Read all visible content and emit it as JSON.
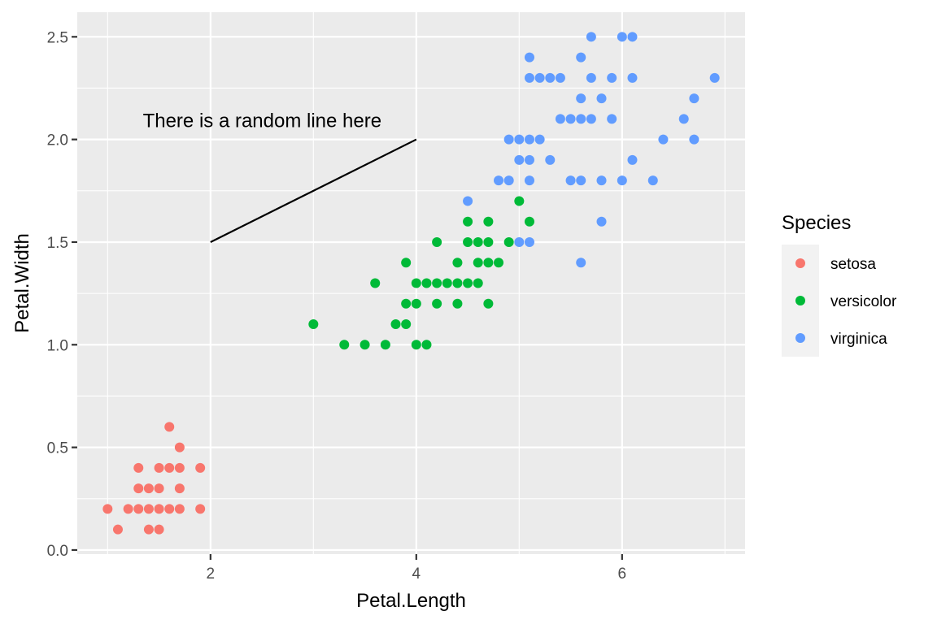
{
  "chart_data": {
    "type": "scatter",
    "xlabel": "Petal.Length",
    "ylabel": "Petal.Width",
    "xlim": [
      0.705,
      7.195
    ],
    "ylim": [
      -0.02,
      2.62
    ],
    "x_major_ticks": [
      2,
      4,
      6
    ],
    "x_minor_ticks": [
      1,
      3,
      5,
      7
    ],
    "y_major_ticks": [
      0.0,
      0.5,
      1.0,
      1.5,
      2.0,
      2.5
    ],
    "y_minor_ticks": [
      0.25,
      0.75,
      1.25,
      1.75,
      2.25
    ],
    "x_tick_labels": [
      "2",
      "4",
      "6"
    ],
    "y_tick_labels": [
      "0.0",
      "0.5",
      "1.0",
      "1.5",
      "2.0",
      "2.5"
    ],
    "grid": true,
    "legend": {
      "title": "Species",
      "position": "right",
      "entries": [
        "setosa",
        "versicolor",
        "virginica"
      ]
    },
    "annotation": {
      "text": "There is a random line here",
      "segment": {
        "x1": 2,
        "y1": 1.5,
        "x2": 4,
        "y2": 2.0
      }
    },
    "series": [
      {
        "name": "setosa",
        "color": "#F8766D",
        "points": [
          [
            1.0,
            0.2
          ],
          [
            1.1,
            0.1
          ],
          [
            1.2,
            0.2
          ],
          [
            1.3,
            0.2
          ],
          [
            1.3,
            0.3
          ],
          [
            1.3,
            0.4
          ],
          [
            1.4,
            0.1
          ],
          [
            1.4,
            0.2
          ],
          [
            1.4,
            0.3
          ],
          [
            1.5,
            0.1
          ],
          [
            1.5,
            0.2
          ],
          [
            1.5,
            0.3
          ],
          [
            1.5,
            0.4
          ],
          [
            1.6,
            0.2
          ],
          [
            1.6,
            0.4
          ],
          [
            1.6,
            0.6
          ],
          [
            1.7,
            0.2
          ],
          [
            1.7,
            0.3
          ],
          [
            1.7,
            0.4
          ],
          [
            1.7,
            0.5
          ],
          [
            1.9,
            0.2
          ],
          [
            1.9,
            0.4
          ]
        ]
      },
      {
        "name": "versicolor",
        "color": "#00BA38",
        "points": [
          [
            3.0,
            1.1
          ],
          [
            3.3,
            1.0
          ],
          [
            3.5,
            1.0
          ],
          [
            3.6,
            1.3
          ],
          [
            3.7,
            1.0
          ],
          [
            3.8,
            1.1
          ],
          [
            3.9,
            1.1
          ],
          [
            3.9,
            1.2
          ],
          [
            3.9,
            1.4
          ],
          [
            4.0,
            1.0
          ],
          [
            4.0,
            1.2
          ],
          [
            4.0,
            1.3
          ],
          [
            4.1,
            1.0
          ],
          [
            4.1,
            1.3
          ],
          [
            4.2,
            1.2
          ],
          [
            4.2,
            1.3
          ],
          [
            4.2,
            1.5
          ],
          [
            4.3,
            1.3
          ],
          [
            4.4,
            1.2
          ],
          [
            4.4,
            1.3
          ],
          [
            4.4,
            1.4
          ],
          [
            4.5,
            1.3
          ],
          [
            4.5,
            1.5
          ],
          [
            4.5,
            1.6
          ],
          [
            4.6,
            1.3
          ],
          [
            4.6,
            1.4
          ],
          [
            4.6,
            1.5
          ],
          [
            4.7,
            1.2
          ],
          [
            4.7,
            1.4
          ],
          [
            4.7,
            1.5
          ],
          [
            4.7,
            1.6
          ],
          [
            4.8,
            1.4
          ],
          [
            4.9,
            1.5
          ],
          [
            5.0,
            1.7
          ],
          [
            5.1,
            1.6
          ]
        ]
      },
      {
        "name": "virginica",
        "color": "#619CFF",
        "points": [
          [
            4.5,
            1.7
          ],
          [
            4.8,
            1.8
          ],
          [
            4.9,
            1.8
          ],
          [
            4.9,
            2.0
          ],
          [
            5.0,
            1.5
          ],
          [
            5.0,
            1.9
          ],
          [
            5.0,
            2.0
          ],
          [
            5.1,
            1.5
          ],
          [
            5.1,
            1.8
          ],
          [
            5.1,
            1.9
          ],
          [
            5.1,
            2.0
          ],
          [
            5.1,
            2.3
          ],
          [
            5.1,
            2.4
          ],
          [
            5.2,
            2.0
          ],
          [
            5.2,
            2.3
          ],
          [
            5.3,
            1.9
          ],
          [
            5.3,
            2.3
          ],
          [
            5.4,
            2.1
          ],
          [
            5.4,
            2.3
          ],
          [
            5.5,
            1.8
          ],
          [
            5.5,
            2.1
          ],
          [
            5.6,
            1.4
          ],
          [
            5.6,
            1.8
          ],
          [
            5.6,
            2.1
          ],
          [
            5.6,
            2.2
          ],
          [
            5.6,
            2.4
          ],
          [
            5.7,
            2.1
          ],
          [
            5.7,
            2.3
          ],
          [
            5.7,
            2.5
          ],
          [
            5.8,
            1.6
          ],
          [
            5.8,
            1.8
          ],
          [
            5.8,
            2.2
          ],
          [
            5.9,
            2.1
          ],
          [
            5.9,
            2.3
          ],
          [
            6.0,
            1.8
          ],
          [
            6.0,
            2.5
          ],
          [
            6.1,
            1.9
          ],
          [
            6.1,
            2.3
          ],
          [
            6.1,
            2.5
          ],
          [
            6.3,
            1.8
          ],
          [
            6.4,
            2.0
          ],
          [
            6.6,
            2.1
          ],
          [
            6.7,
            2.0
          ],
          [
            6.7,
            2.2
          ],
          [
            6.9,
            2.3
          ]
        ]
      }
    ]
  }
}
